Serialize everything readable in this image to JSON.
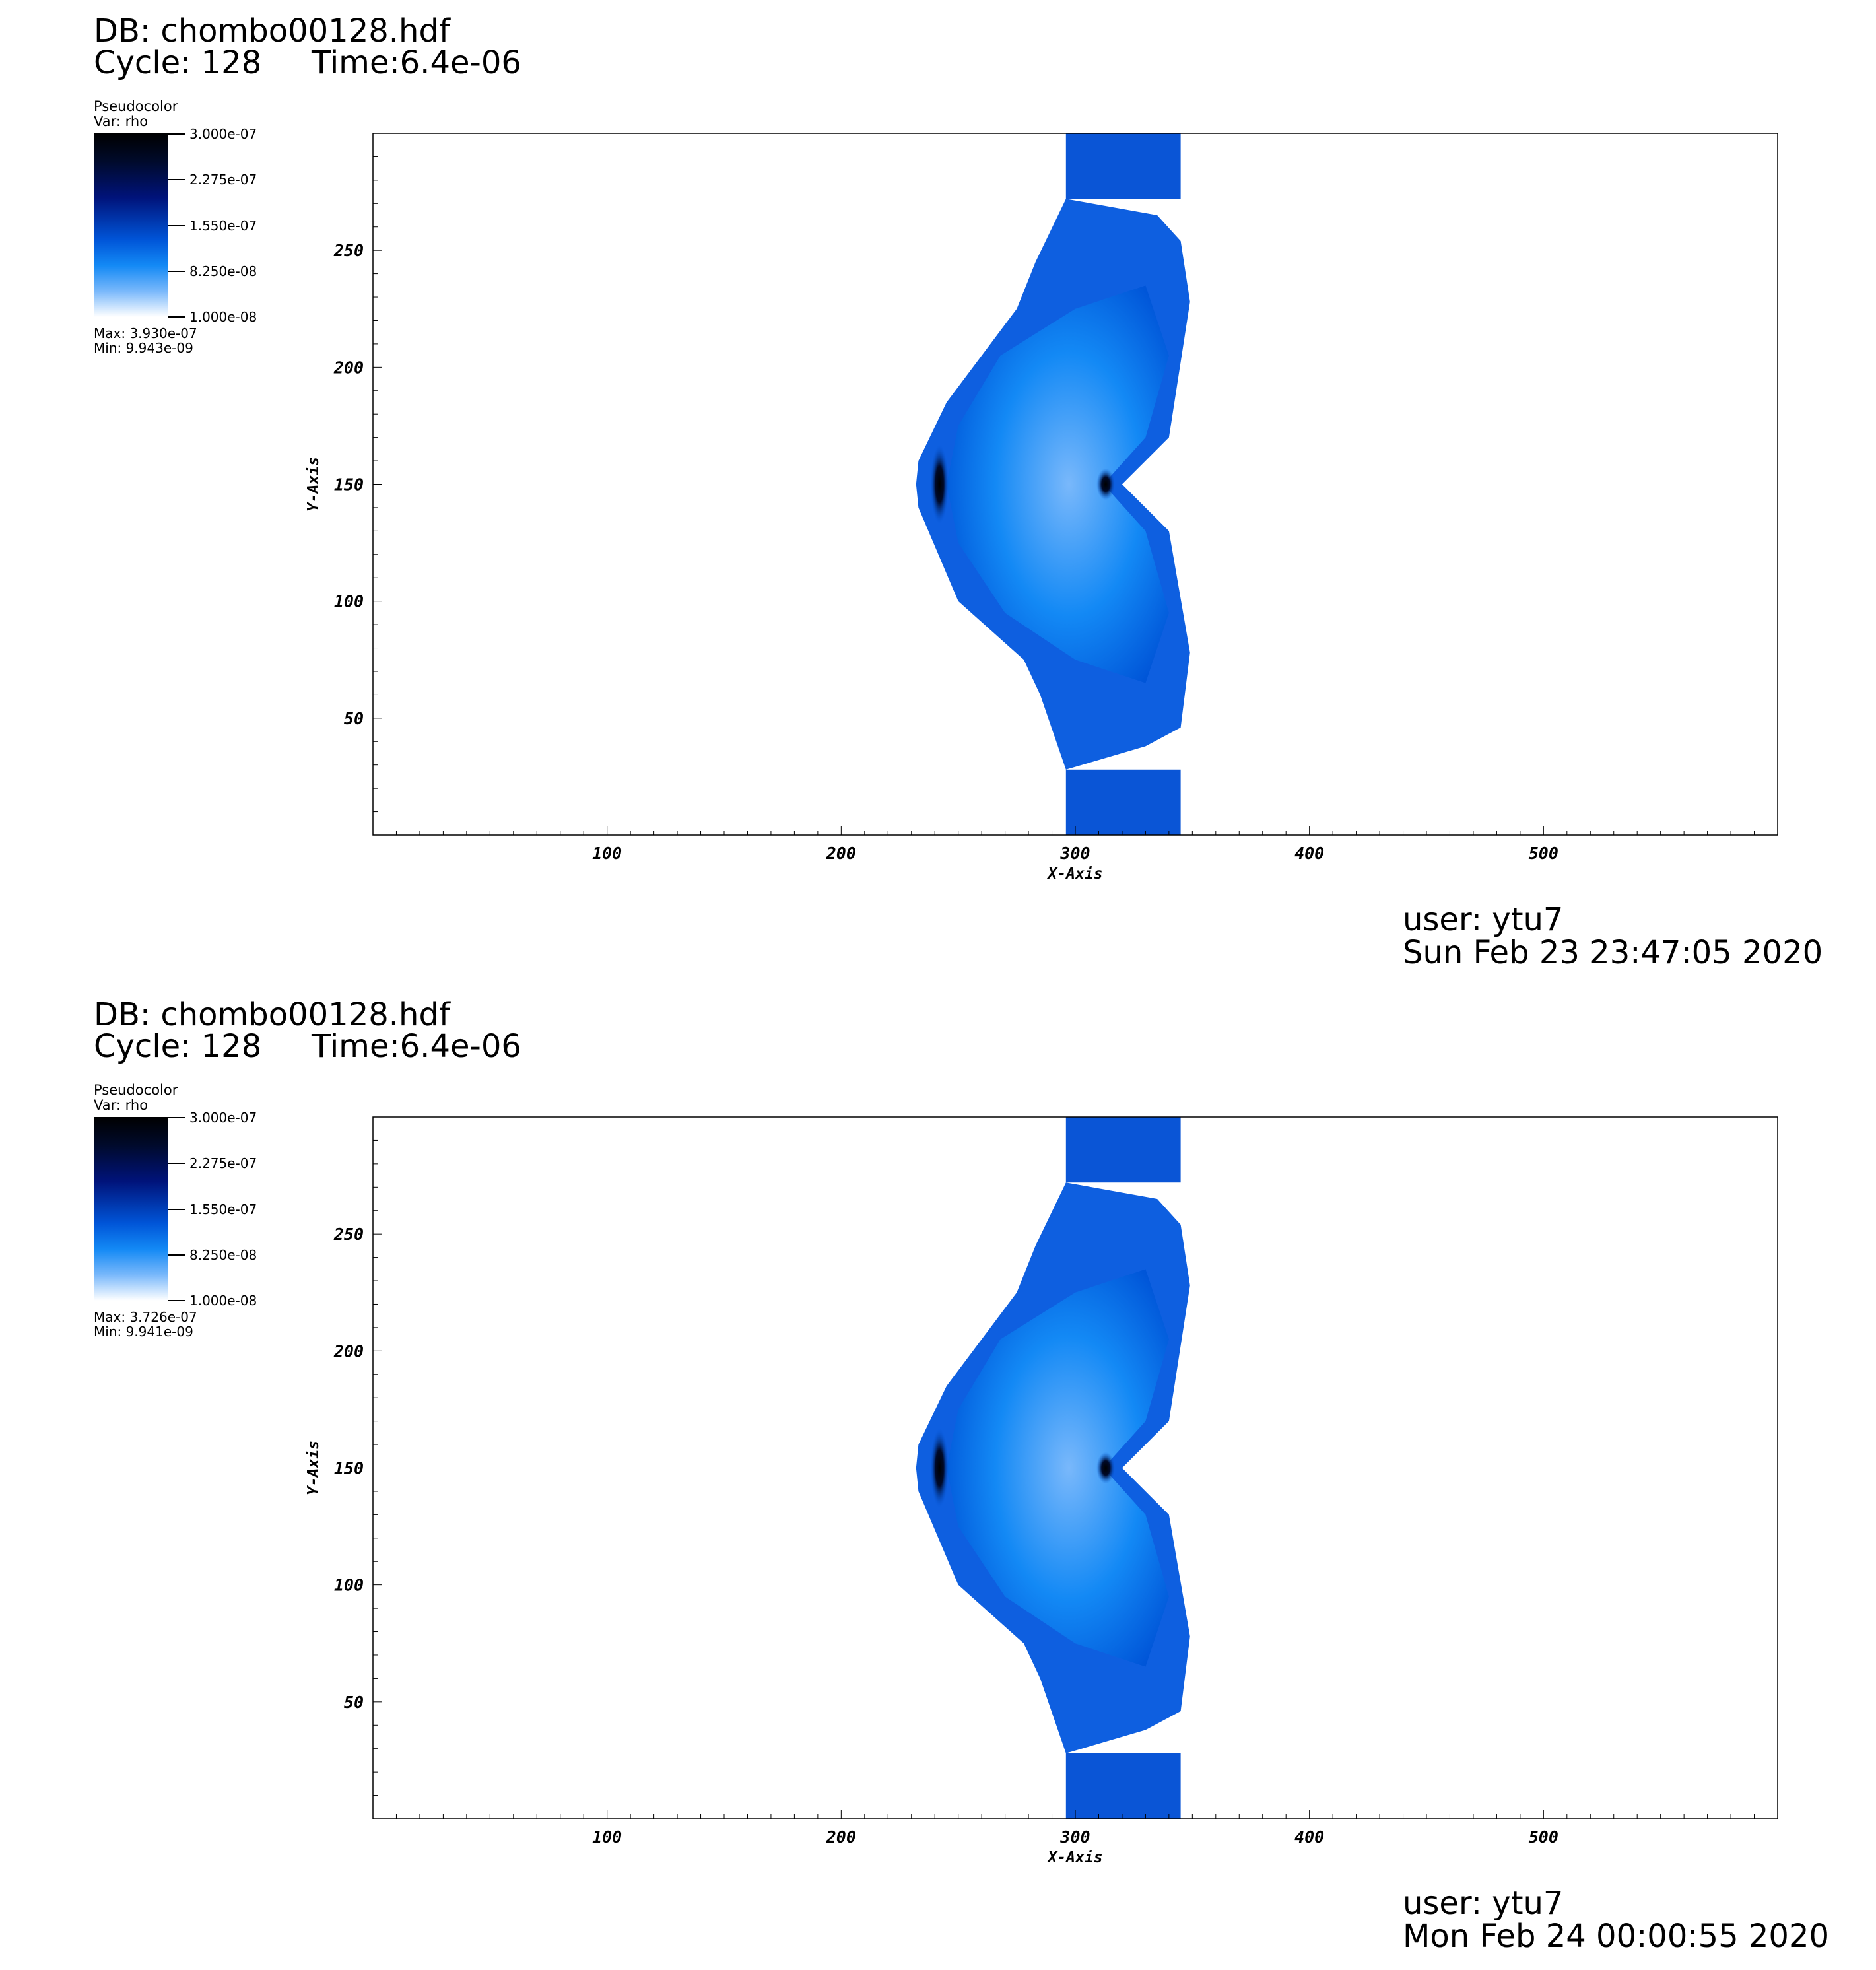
{
  "panels": [
    {
      "db": "DB: chombo00128.hdf",
      "cycle": "Cycle: 128",
      "time": "Time:6.4e-06",
      "legend": {
        "title": "Pseudocolor",
        "var": "Var: rho",
        "ticks": [
          "3.000e-07",
          "2.275e-07",
          "1.550e-07",
          "8.250e-08",
          "1.000e-08"
        ],
        "max": "Max:  3.930e-07",
        "min": "Min:  9.943e-09"
      },
      "user": "user: ytu7",
      "date": "Sun Feb 23 23:47:05 2020"
    },
    {
      "db": "DB: chombo00128.hdf",
      "cycle": "Cycle: 128",
      "time": "Time:6.4e-06",
      "legend": {
        "title": "Pseudocolor",
        "var": "Var: rho",
        "ticks": [
          "3.000e-07",
          "2.275e-07",
          "1.550e-07",
          "8.250e-08",
          "1.000e-08"
        ],
        "max": "Max:  3.726e-07",
        "min": "Min:  9.941e-09"
      },
      "user": "user: ytu7",
      "date": "Mon Feb 24 00:00:55 2020"
    }
  ],
  "chart_data": [
    {
      "type": "heatmap",
      "variable": "rho",
      "xlabel": "X-Axis",
      "ylabel": "Y-Axis",
      "xlim": [
        0,
        600
      ],
      "ylim": [
        0,
        300
      ],
      "xticks": [
        100,
        200,
        300,
        400,
        500
      ],
      "yticks": [
        50,
        100,
        150,
        200,
        250
      ],
      "colorbar_range": [
        1e-08,
        3e-07
      ],
      "colormap": [
        "#ffffff",
        "#79b8fb",
        "#1389f5",
        "#0055d8",
        "#00137a",
        "#000a2a",
        "#000000"
      ],
      "data_max": 3.93e-07,
      "data_min": 9.943e-09
    },
    {
      "type": "heatmap",
      "variable": "rho",
      "xlabel": "X-Axis",
      "ylabel": "Y-Axis",
      "xlim": [
        0,
        600
      ],
      "ylim": [
        0,
        300
      ],
      "xticks": [
        100,
        200,
        300,
        400,
        500
      ],
      "yticks": [
        50,
        100,
        150,
        200,
        250
      ],
      "colorbar_range": [
        1e-08,
        3e-07
      ],
      "colormap": [
        "#ffffff",
        "#79b8fb",
        "#1389f5",
        "#0055d8",
        "#00137a",
        "#000a2a",
        "#000000"
      ],
      "data_max": 3.726e-07,
      "data_min": 9.941e-09
    }
  ]
}
